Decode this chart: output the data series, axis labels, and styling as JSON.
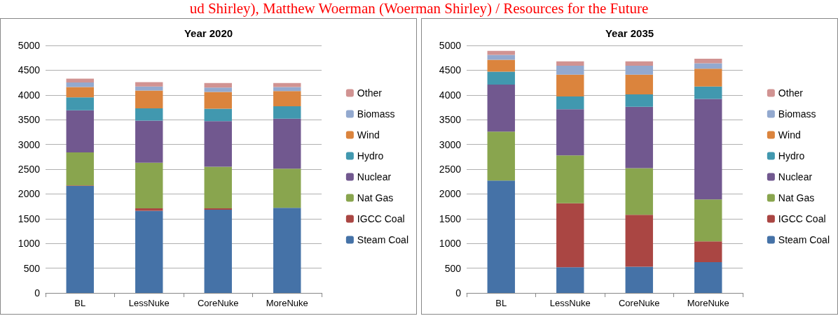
{
  "chart_data": [
    {
      "type": "bar",
      "title": "Year 2020",
      "stacked": true,
      "categories": [
        "BL",
        "LessNuke",
        "CoreNuke",
        "MoreNuke"
      ],
      "ylim": [
        0,
        5000
      ],
      "yticks": [
        0,
        500,
        1000,
        1500,
        2000,
        2500,
        3000,
        3500,
        4000,
        4500,
        5000
      ],
      "grid": "y",
      "legend": "right",
      "annotations": [
        "ud Shirley), Matthew Woerman (Woerman Shirley) / Resources for the Future"
      ],
      "series": [
        {
          "name": "Steam Coal",
          "color": "#4572a7",
          "values": [
            2160,
            1660,
            1680,
            1720
          ]
        },
        {
          "name": "IGCC Coal",
          "color": "#aa4643",
          "values": [
            10,
            50,
            30,
            null
          ]
        },
        {
          "name": "Nat Gas",
          "color": "#89a54e",
          "values": [
            670,
            920,
            840,
            790
          ]
        },
        {
          "name": "Nuclear",
          "color": "#71588f",
          "values": [
            850,
            850,
            920,
            1010
          ]
        },
        {
          "name": "Hydro",
          "color": "#4198af",
          "values": [
            260,
            250,
            250,
            250
          ]
        },
        {
          "name": "Wind",
          "color": "#db843d",
          "values": [
            210,
            360,
            340,
            310
          ]
        },
        {
          "name": "Biomass",
          "color": "#93a9cf",
          "values": [
            90,
            80,
            90,
            80
          ]
        },
        {
          "name": "Other",
          "color": "#d19392",
          "values": [
            80,
            90,
            90,
            80
          ]
        }
      ]
    },
    {
      "type": "bar",
      "title": "Year 2035",
      "stacked": true,
      "categories": [
        "BL",
        "LessNuke",
        "CoreNuke",
        "MoreNuke"
      ],
      "ylim": [
        0,
        5000
      ],
      "yticks": [
        0,
        500,
        1000,
        1500,
        2000,
        2500,
        3000,
        3500,
        4000,
        4500,
        5000
      ],
      "grid": "y",
      "legend": "right",
      "series": [
        {
          "name": "Steam Coal",
          "color": "#4572a7",
          "values": [
            2270,
            520,
            530,
            620
          ]
        },
        {
          "name": "IGCC Coal",
          "color": "#aa4643",
          "values": [
            0,
            1290,
            1050,
            420
          ]
        },
        {
          "name": "Nat Gas",
          "color": "#89a54e",
          "values": [
            990,
            970,
            940,
            850
          ]
        },
        {
          "name": "Nuclear",
          "color": "#71588f",
          "values": [
            950,
            930,
            1240,
            2030
          ]
        },
        {
          "name": "Hydro",
          "color": "#4198af",
          "values": [
            260,
            260,
            250,
            250
          ]
        },
        {
          "name": "Wind",
          "color": "#db843d",
          "values": [
            240,
            440,
            400,
            360
          ]
        },
        {
          "name": "Biomass",
          "color": "#93a9cf",
          "values": [
            100,
            180,
            180,
            110
          ]
        },
        {
          "name": "Other",
          "color": "#d19392",
          "values": [
            80,
            90,
            90,
            90
          ]
        }
      ]
    }
  ]
}
